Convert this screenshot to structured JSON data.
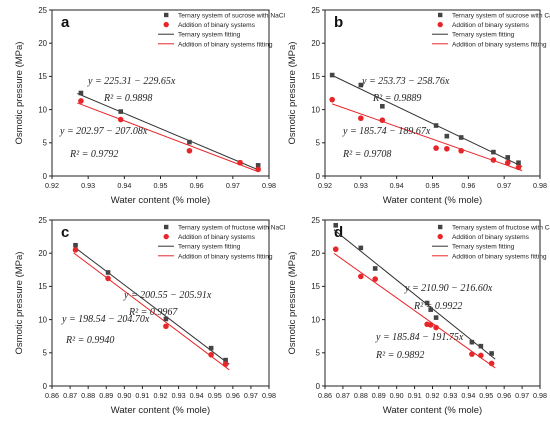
{
  "chart_data": [
    {
      "type": "scatter",
      "panel_label": "a",
      "xlabel": "Water content (% mole)",
      "ylabel": "Osmotic pressure (MPa)",
      "xlim": [
        0.92,
        0.98
      ],
      "ylim": [
        0,
        25
      ],
      "xticks": [
        0.92,
        0.93,
        0.94,
        0.95,
        0.96,
        0.97,
        0.98
      ],
      "xtick_labels": [
        "0.92",
        "0.93",
        "0.94",
        "0.95",
        "0.96",
        "0.97",
        "0.98"
      ],
      "yticks": [
        0,
        5,
        10,
        15,
        20,
        25
      ],
      "ytick_labels": [
        "0",
        "5",
        "10",
        "15",
        "20",
        "25"
      ],
      "grid": false,
      "legend_position": "top-right",
      "series": [
        {
          "name": "Ternary system of sucrose with NaCl",
          "kind": "points",
          "marker": "square",
          "color": "#444444",
          "x": [
            0.928,
            0.939,
            0.958,
            0.972,
            0.977
          ],
          "y": [
            12.5,
            9.7,
            5.1,
            2.0,
            1.6
          ]
        },
        {
          "name": "Addition of binary systems",
          "kind": "points",
          "marker": "circle",
          "color": "#e8262a",
          "x": [
            0.928,
            0.939,
            0.958,
            0.972,
            0.977
          ],
          "y": [
            11.3,
            8.5,
            3.8,
            2.0,
            1.0
          ]
        },
        {
          "name": "Ternary system fitting",
          "kind": "fit",
          "color": "#333333",
          "intercept": 225.31,
          "slope": -229.65,
          "x_range": [
            0.927,
            0.977
          ]
        },
        {
          "name": "Addition of binary systems fitting",
          "kind": "fit",
          "color": "#e8262a",
          "intercept": 202.97,
          "slope": -207.08,
          "x_range": [
            0.927,
            0.977
          ]
        }
      ],
      "annotations": [
        {
          "id": "eq1",
          "text": "y = 225.31 − 229.65x",
          "color": "#222222"
        },
        {
          "id": "r1",
          "text": "R² = 0.9898",
          "color": "#222222"
        },
        {
          "id": "eq2",
          "text": "y = 202.97 − 207.08x",
          "color": "#222222"
        },
        {
          "id": "r2",
          "text": "R² = 0.9792",
          "color": "#222222"
        }
      ]
    },
    {
      "type": "scatter",
      "panel_label": "b",
      "xlabel": "Water content (% mole)",
      "ylabel": "Osmotic pressure (MPa)",
      "xlim": [
        0.92,
        0.98
      ],
      "ylim": [
        0,
        25
      ],
      "xticks": [
        0.92,
        0.93,
        0.94,
        0.95,
        0.96,
        0.97,
        0.98
      ],
      "xtick_labels": [
        "0.92",
        "0.93",
        "0.94",
        "0.95",
        "0.96",
        "0.97",
        "0.98"
      ],
      "yticks": [
        0,
        5,
        10,
        15,
        20,
        25
      ],
      "ytick_labels": [
        "0",
        "5",
        "10",
        "15",
        "20",
        "25"
      ],
      "grid": false,
      "legend_position": "top-right",
      "series": [
        {
          "name": "Ternary system of sucrose with CaLac",
          "kind": "points",
          "marker": "square",
          "color": "#444444",
          "x": [
            0.922,
            0.93,
            0.936,
            0.951,
            0.954,
            0.958,
            0.967,
            0.971,
            0.974
          ],
          "y": [
            15.2,
            13.7,
            10.5,
            7.6,
            6.0,
            5.8,
            3.6,
            2.8,
            2.0
          ]
        },
        {
          "name": "Addition of binary systems",
          "kind": "points",
          "marker": "circle",
          "color": "#e8262a",
          "x": [
            0.922,
            0.93,
            0.936,
            0.951,
            0.954,
            0.958,
            0.967,
            0.971,
            0.974
          ],
          "y": [
            11.5,
            8.7,
            8.4,
            4.2,
            4.1,
            3.8,
            2.4,
            2.0,
            1.3
          ]
        },
        {
          "name": "Ternary system fitting",
          "kind": "fit",
          "color": "#333333",
          "intercept": 253.73,
          "slope": -258.76,
          "x_range": [
            0.922,
            0.975
          ]
        },
        {
          "name": "Addition of binary systems fitting",
          "kind": "fit",
          "color": "#e8262a",
          "intercept": 185.74,
          "slope": -189.67,
          "x_range": [
            0.922,
            0.975
          ]
        }
      ],
      "annotations": [
        {
          "id": "eq1",
          "text": "y = 253.73 − 258.76x",
          "color": "#222222"
        },
        {
          "id": "r1",
          "text": "R² = 0.9889",
          "color": "#222222"
        },
        {
          "id": "eq2",
          "text": "y = 185.74 − 189.67x",
          "color": "#222222"
        },
        {
          "id": "r2",
          "text": "R² = 0.9708",
          "color": "#222222"
        }
      ]
    },
    {
      "type": "scatter",
      "panel_label": "c",
      "xlabel": "Water content (% mole)",
      "ylabel": "Osmotic pressure (MPa)",
      "xlim": [
        0.86,
        0.98
      ],
      "ylim": [
        0,
        25
      ],
      "xticks": [
        0.86,
        0.87,
        0.88,
        0.89,
        0.9,
        0.91,
        0.92,
        0.93,
        0.94,
        0.95,
        0.96,
        0.97,
        0.98
      ],
      "xtick_labels": [
        "0.86",
        "0.87",
        "0.88",
        "0.89",
        "0.90",
        "0.91",
        "0.92",
        "0.93",
        "0.94",
        "0.95",
        "0.96",
        "0.97",
        "0.98"
      ],
      "yticks": [
        0,
        5,
        10,
        15,
        20,
        25
      ],
      "ytick_labels": [
        "0",
        "5",
        "10",
        "15",
        "20",
        "25"
      ],
      "grid": false,
      "legend_position": "top-right",
      "series": [
        {
          "name": "Ternary system of fructose with NaCl",
          "kind": "points",
          "marker": "square",
          "color": "#444444",
          "x": [
            0.873,
            0.891,
            0.923,
            0.948,
            0.956
          ],
          "y": [
            21.2,
            17.1,
            10.1,
            5.7,
            3.9
          ]
        },
        {
          "name": "Addition of binary systems",
          "kind": "points",
          "marker": "circle",
          "color": "#e8262a",
          "x": [
            0.873,
            0.891,
            0.923,
            0.948,
            0.956
          ],
          "y": [
            20.5,
            16.2,
            9.0,
            4.7,
            3.3
          ]
        },
        {
          "name": "Ternary system fitting",
          "kind": "fit",
          "color": "#333333",
          "intercept": 200.55,
          "slope": -205.91,
          "x_range": [
            0.872,
            0.958
          ]
        },
        {
          "name": "Addition of binary systems fitting",
          "kind": "fit",
          "color": "#e8262a",
          "intercept": 198.54,
          "slope": -204.7,
          "x_range": [
            0.872,
            0.958
          ]
        }
      ],
      "annotations": [
        {
          "id": "eq1",
          "text": "y = 200.55 − 205.91x",
          "color": "#222222"
        },
        {
          "id": "r1",
          "text": "R² = 0.9967",
          "color": "#222222"
        },
        {
          "id": "eq2",
          "text": "y = 198.54 − 204.70x",
          "color": "#222222"
        },
        {
          "id": "r2",
          "text": "R² = 0.9940",
          "color": "#222222"
        }
      ]
    },
    {
      "type": "scatter",
      "panel_label": "d",
      "xlabel": "Water content (% mole)",
      "ylabel": "Osmotic pressure (MPa)",
      "xlim": [
        0.86,
        0.98
      ],
      "ylim": [
        0,
        25
      ],
      "xticks": [
        0.86,
        0.87,
        0.88,
        0.89,
        0.9,
        0.91,
        0.92,
        0.93,
        0.94,
        0.95,
        0.96,
        0.97,
        0.98
      ],
      "xtick_labels": [
        "0.86",
        "0.87",
        "0.88",
        "0.89",
        "0.90",
        "0.91",
        "0.92",
        "0.93",
        "0.94",
        "0.95",
        "0.96",
        "0.97",
        "0.98"
      ],
      "yticks": [
        0,
        5,
        10,
        15,
        20,
        25
      ],
      "ytick_labels": [
        "0",
        "5",
        "10",
        "15",
        "20",
        "25"
      ],
      "grid": false,
      "legend_position": "top-right",
      "series": [
        {
          "name": "Ternary system of fructose with CaLac",
          "kind": "points",
          "marker": "square",
          "color": "#444444",
          "x": [
            0.866,
            0.88,
            0.888,
            0.917,
            0.919,
            0.922,
            0.942,
            0.947,
            0.953
          ],
          "y": [
            24.2,
            20.8,
            17.7,
            12.5,
            11.5,
            10.3,
            6.6,
            6.0,
            4.9
          ]
        },
        {
          "name": "Addition of binary systems",
          "kind": "points",
          "marker": "circle",
          "color": "#e8262a",
          "x": [
            0.866,
            0.88,
            0.888,
            0.917,
            0.919,
            0.922,
            0.942,
            0.947,
            0.953
          ],
          "y": [
            20.6,
            16.5,
            16.1,
            9.3,
            9.2,
            8.8,
            4.8,
            4.6,
            3.4
          ]
        },
        {
          "name": "Ternary system fitting",
          "kind": "fit",
          "color": "#333333",
          "intercept": 210.9,
          "slope": -216.6,
          "x_range": [
            0.865,
            0.955
          ]
        },
        {
          "name": "Addition of binary systems fitting",
          "kind": "fit",
          "color": "#e8262a",
          "intercept": 185.84,
          "slope": -191.75,
          "x_range": [
            0.865,
            0.955
          ]
        }
      ],
      "annotations": [
        {
          "id": "eq1",
          "text": "y = 210.90 − 216.60x",
          "color": "#222222"
        },
        {
          "id": "r1",
          "text": "R² = 0.9922",
          "color": "#222222"
        },
        {
          "id": "eq2",
          "text": "y = 185.84 − 191.75x",
          "color": "#222222"
        },
        {
          "id": "r2",
          "text": "R² = 0.9892",
          "color": "#222222"
        }
      ]
    }
  ]
}
